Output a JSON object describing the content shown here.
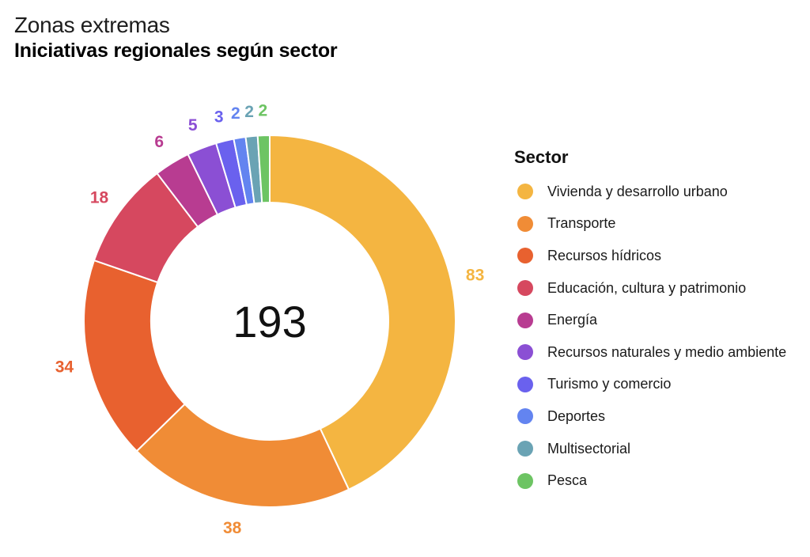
{
  "header": {
    "subtitle": "Zonas extremas",
    "title": "Iniciativas regionales según sector"
  },
  "legend": {
    "title": "Sector"
  },
  "chart_data": {
    "type": "pie",
    "subtype": "donut",
    "title": "Iniciativas regionales según sector",
    "subtitle": "Zonas extremas",
    "total_label": "193",
    "legend_title": "Sector",
    "legend_position": "right",
    "categories": [
      "Vivienda y desarrollo urbano",
      "Transporte",
      "Recursos hídricos",
      "Educación, cultura y patrimonio",
      "Energía",
      "Recursos naturales y medio ambiente",
      "Turismo y comercio",
      "Deportes",
      "Multisectorial",
      "Pesca"
    ],
    "values": [
      83,
      38,
      34,
      18,
      6,
      5,
      3,
      2,
      2,
      2
    ],
    "colors": [
      "#F4B541",
      "#F08C36",
      "#E8612F",
      "#D6485F",
      "#B83C91",
      "#8B4FD4",
      "#6A61EE",
      "#6384F0",
      "#6AA3B4",
      "#6DC463"
    ]
  }
}
